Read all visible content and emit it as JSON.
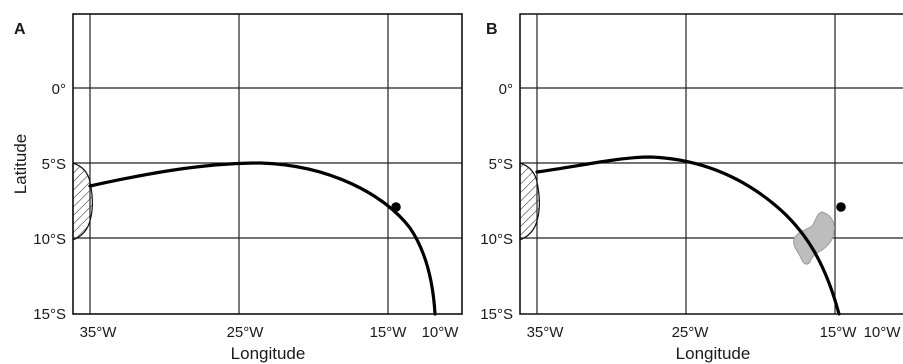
{
  "panels": [
    {
      "letter": "A"
    },
    {
      "letter": "B"
    }
  ],
  "axes": {
    "xlabel": "Longitude",
    "ylabel": "Latitude",
    "lat_ticks": [
      "0°",
      "5°S",
      "10°S",
      "15°S"
    ],
    "lon_ticks": [
      "35°W",
      "25°W",
      "15°W",
      "10°W"
    ]
  },
  "colors": {
    "track": "#000000",
    "grey_area": "#bdbdbd",
    "grid": "#222222"
  },
  "icons": {
    "point": "black-dot-icon",
    "coast": "hatched-coastline-icon",
    "area": "grey-patch-icon"
  }
}
